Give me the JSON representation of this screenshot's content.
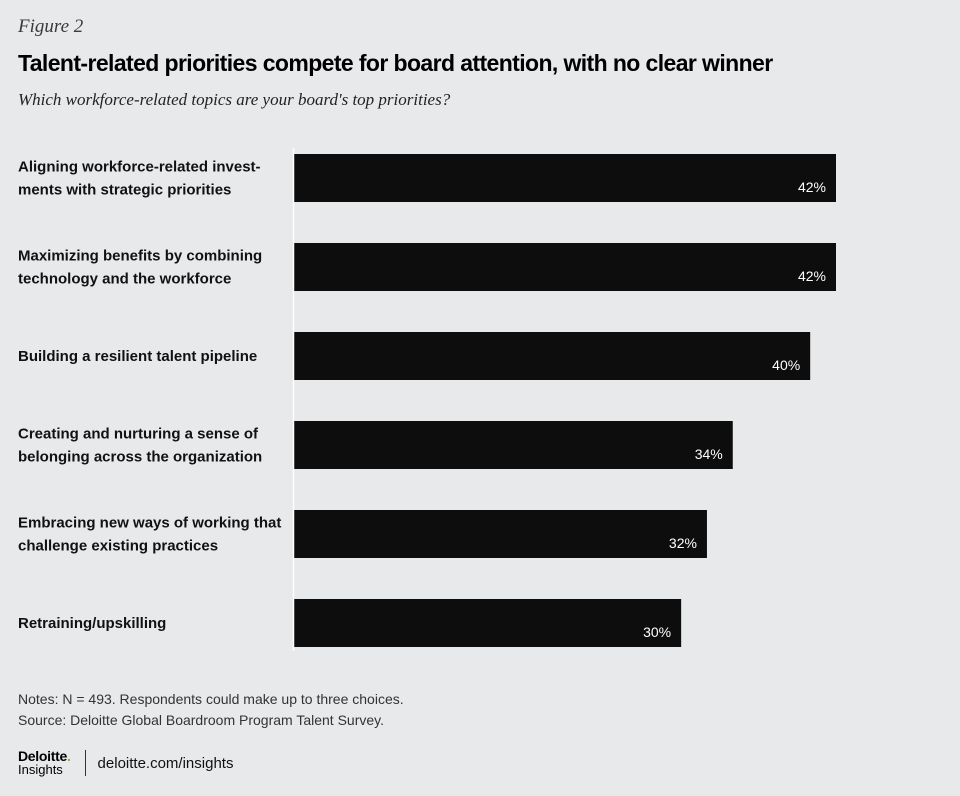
{
  "figure_label": "Figure 2",
  "notes": {
    "line1": "Notes: N = 493. Respondents could make up to three choices.",
    "line2": "Source: Deloitte Global Boardroom Program Talent Survey."
  },
  "footer": {
    "logo_main": "Deloitte",
    "logo_dot": ".",
    "logo_sub": "Insights",
    "link": "deloitte.com/insights"
  },
  "colors": {
    "background": "#e8e9ea",
    "bar": "#0d0d0d",
    "bar_label": "#ffffff",
    "axis_line": "#ffffff",
    "brand_green": "#86bc25"
  },
  "chart_data": {
    "type": "bar",
    "orientation": "horizontal",
    "title": "Talent-related priorities compete for board attention, with no clear winner",
    "subtitle": "Which workforce-related topics are your board's top priorities?",
    "xlabel": "",
    "ylabel": "",
    "xlim": [
      0,
      42
    ],
    "grid": false,
    "value_suffix": "%",
    "categories": [
      [
        "Aligning workforce-related invest-",
        "ments with strategic priorities"
      ],
      [
        "Maximizing benefits by combining",
        "technology and the workforce"
      ],
      [
        "Building a resilient talent pipeline"
      ],
      [
        "Creating and nurturing a sense of",
        "belonging across the organization"
      ],
      [
        "Embracing new ways of working that",
        "challenge existing practices"
      ],
      [
        "Retraining/upskilling"
      ]
    ],
    "values": [
      42,
      42,
      40,
      34,
      32,
      30
    ],
    "data_labels": [
      "42%",
      "42%",
      "40%",
      "34%",
      "32%",
      "30%"
    ]
  }
}
